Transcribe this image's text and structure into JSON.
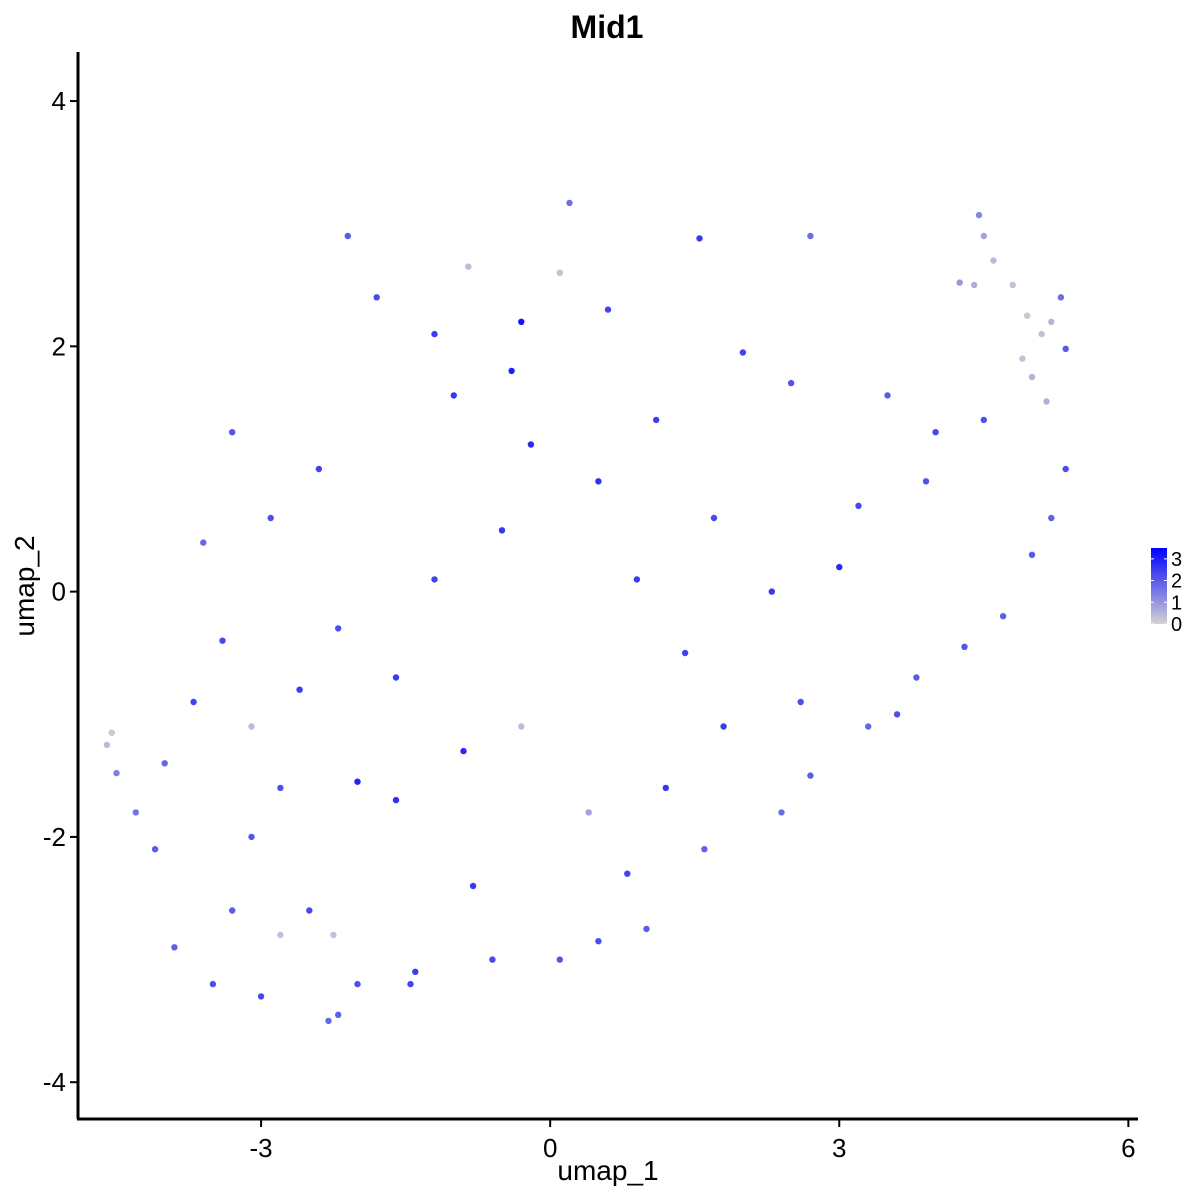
{
  "chart_data": {
    "type": "scatter",
    "title": "Mid1",
    "xlabel": "umap_1",
    "ylabel": "umap_2",
    "xlim": [
      -4.9,
      6.1
    ],
    "ylim": [
      -4.3,
      4.4
    ],
    "xticks": [
      -3,
      0,
      3,
      6
    ],
    "xtick_labels": [
      "-3",
      "0",
      "3",
      "6"
    ],
    "yticks": [
      -4,
      -2,
      0,
      2,
      4
    ],
    "ytick_labels": [
      "-4",
      "-2",
      "0",
      "2",
      "4"
    ],
    "grid": false,
    "legend": {
      "placement": "right",
      "type": "colorbar",
      "ticks": [
        0,
        1,
        2,
        3
      ],
      "tick_labels": [
        "0",
        "1",
        "2",
        "3"
      ],
      "color_low": "#d3d3d3",
      "color_high": "#0000ff",
      "range": [
        0,
        3.5
      ]
    },
    "point_color_low": "#d3d3d3",
    "point_color_high": "#0000ff",
    "points": [
      {
        "x": -4.6,
        "y": -1.25,
        "v": 0.4
      },
      {
        "x": -4.55,
        "y": -1.15,
        "v": 0.2
      },
      {
        "x": -4.5,
        "y": -1.48,
        "v": 1.4
      },
      {
        "x": -4.3,
        "y": -1.8,
        "v": 1.6
      },
      {
        "x": -2.3,
        "y": -3.5,
        "v": 1.8
      },
      {
        "x": -2.2,
        "y": -3.45,
        "v": 1.9
      },
      {
        "x": -2.0,
        "y": -3.2,
        "v": 2.2
      },
      {
        "x": 4.45,
        "y": 3.07,
        "v": 1.3
      },
      {
        "x": 4.5,
        "y": 2.9,
        "v": 0.8
      },
      {
        "x": 4.6,
        "y": 2.7,
        "v": 0.4
      },
      {
        "x": 4.8,
        "y": 2.5,
        "v": 0.3
      },
      {
        "x": 4.95,
        "y": 2.25,
        "v": 0.2
      },
      {
        "x": 5.1,
        "y": 2.1,
        "v": 0.3
      },
      {
        "x": 5.2,
        "y": 2.2,
        "v": 0.5
      },
      {
        "x": 4.9,
        "y": 1.9,
        "v": 0.3
      },
      {
        "x": 5.0,
        "y": 1.75,
        "v": 0.5
      },
      {
        "x": 5.15,
        "y": 1.55,
        "v": 0.6
      },
      {
        "x": 5.3,
        "y": 2.4,
        "v": 1.7
      },
      {
        "x": 5.35,
        "y": 1.98,
        "v": 2.0
      },
      {
        "x": 5.35,
        "y": 1.0,
        "v": 2.2
      },
      {
        "x": 5.2,
        "y": 0.6,
        "v": 1.9
      },
      {
        "x": 4.4,
        "y": 2.5,
        "v": 0.6
      },
      {
        "x": 4.25,
        "y": 2.52,
        "v": 1.0
      },
      {
        "x": 2.7,
        "y": 2.9,
        "v": 1.7
      },
      {
        "x": 1.55,
        "y": 2.88,
        "v": 2.6
      },
      {
        "x": 0.1,
        "y": 2.6,
        "v": 0.3
      },
      {
        "x": -0.85,
        "y": 2.65,
        "v": 0.4
      },
      {
        "x": 0.2,
        "y": 3.17,
        "v": 1.7
      },
      {
        "x": -0.3,
        "y": 2.2,
        "v": 3.2
      },
      {
        "x": -0.4,
        "y": 1.8,
        "v": 3.0
      },
      {
        "x": -2.1,
        "y": 2.9,
        "v": 2.0
      },
      {
        "x": -1.8,
        "y": 2.4,
        "v": 2.3
      },
      {
        "x": -1.2,
        "y": 2.1,
        "v": 2.5
      },
      {
        "x": 0.6,
        "y": 2.3,
        "v": 2.4
      },
      {
        "x": -3.3,
        "y": 1.3,
        "v": 2.1
      },
      {
        "x": -3.6,
        "y": 0.4,
        "v": 1.8
      },
      {
        "x": -3.4,
        "y": -0.4,
        "v": 2.3
      },
      {
        "x": -3.7,
        "y": -0.9,
        "v": 2.4
      },
      {
        "x": -4.0,
        "y": -1.4,
        "v": 1.8
      },
      {
        "x": -4.1,
        "y": -2.1,
        "v": 2.0
      },
      {
        "x": -3.9,
        "y": -2.9,
        "v": 1.9
      },
      {
        "x": -3.5,
        "y": -3.2,
        "v": 2.2
      },
      {
        "x": -3.0,
        "y": -3.3,
        "v": 2.3
      },
      {
        "x": -1.4,
        "y": -3.1,
        "v": 2.5
      },
      {
        "x": -1.45,
        "y": -3.2,
        "v": 2.4
      },
      {
        "x": -0.6,
        "y": -3.0,
        "v": 2.3
      },
      {
        "x": 0.1,
        "y": -3.0,
        "v": 2.1
      },
      {
        "x": 0.5,
        "y": -2.85,
        "v": 2.2
      },
      {
        "x": 1.0,
        "y": -2.75,
        "v": 2.0
      },
      {
        "x": 1.6,
        "y": -2.1,
        "v": 1.9
      },
      {
        "x": 2.4,
        "y": -1.8,
        "v": 1.7
      },
      {
        "x": 2.7,
        "y": -1.5,
        "v": 2.0
      },
      {
        "x": 3.3,
        "y": -1.1,
        "v": 1.8
      },
      {
        "x": 3.6,
        "y": -1.0,
        "v": 2.2
      },
      {
        "x": 3.8,
        "y": -0.7,
        "v": 2.0
      },
      {
        "x": 4.3,
        "y": -0.45,
        "v": 2.1
      },
      {
        "x": 4.7,
        "y": -0.2,
        "v": 1.9
      },
      {
        "x": 5.0,
        "y": 0.3,
        "v": 2.0
      },
      {
        "x": 3.0,
        "y": 0.2,
        "v": 2.8
      },
      {
        "x": 2.3,
        "y": 0.0,
        "v": 2.6
      },
      {
        "x": 1.4,
        "y": -0.5,
        "v": 2.4
      },
      {
        "x": -0.3,
        "y": -1.1,
        "v": 0.4
      },
      {
        "x": 0.4,
        "y": -1.8,
        "v": 0.8
      },
      {
        "x": -2.0,
        "y": -1.55,
        "v": 2.9
      },
      {
        "x": -1.6,
        "y": -1.7,
        "v": 2.7
      },
      {
        "x": -0.9,
        "y": -1.3,
        "v": 2.8
      },
      {
        "x": 1.2,
        "y": -1.6,
        "v": 2.6
      },
      {
        "x": 2.0,
        "y": 1.95,
        "v": 2.4
      },
      {
        "x": 2.5,
        "y": 1.7,
        "v": 2.1
      },
      {
        "x": 3.5,
        "y": 1.6,
        "v": 2.0
      },
      {
        "x": 4.0,
        "y": 1.3,
        "v": 2.3
      },
      {
        "x": 4.5,
        "y": 1.4,
        "v": 2.2
      },
      {
        "x": 1.1,
        "y": 1.4,
        "v": 2.5
      },
      {
        "x": 0.5,
        "y": 0.9,
        "v": 2.7
      },
      {
        "x": -0.5,
        "y": 0.5,
        "v": 2.6
      },
      {
        "x": -1.2,
        "y": 0.1,
        "v": 2.4
      },
      {
        "x": -2.2,
        "y": -0.3,
        "v": 2.2
      },
      {
        "x": -2.6,
        "y": -0.8,
        "v": 2.5
      },
      {
        "x": -3.1,
        "y": -2.0,
        "v": 2.1
      },
      {
        "x": -2.5,
        "y": -2.6,
        "v": 2.3
      },
      {
        "x": -0.8,
        "y": -2.4,
        "v": 2.6
      },
      {
        "x": 0.8,
        "y": -2.3,
        "v": 2.4
      },
      {
        "x": 1.8,
        "y": -1.1,
        "v": 2.5
      },
      {
        "x": 2.6,
        "y": -0.9,
        "v": 2.2
      },
      {
        "x": 3.2,
        "y": 0.7,
        "v": 2.3
      },
      {
        "x": 3.9,
        "y": 0.9,
        "v": 2.1
      },
      {
        "x": -1.0,
        "y": 1.6,
        "v": 2.6
      },
      {
        "x": -2.4,
        "y": 1.0,
        "v": 2.4
      },
      {
        "x": -2.9,
        "y": 0.6,
        "v": 2.2
      },
      {
        "x": 0.9,
        "y": 0.1,
        "v": 2.5
      },
      {
        "x": 1.7,
        "y": 0.6,
        "v": 2.3
      },
      {
        "x": -0.2,
        "y": 1.2,
        "v": 2.8
      },
      {
        "x": -1.6,
        "y": -0.7,
        "v": 2.5
      },
      {
        "x": -3.3,
        "y": -2.6,
        "v": 2.0
      },
      {
        "x": -2.8,
        "y": -1.6,
        "v": 2.2
      },
      {
        "x": -2.8,
        "y": -2.8,
        "v": 0.3
      },
      {
        "x": -2.25,
        "y": -2.8,
        "v": 0.3
      },
      {
        "x": -3.1,
        "y": -1.1,
        "v": 0.4
      }
    ]
  }
}
